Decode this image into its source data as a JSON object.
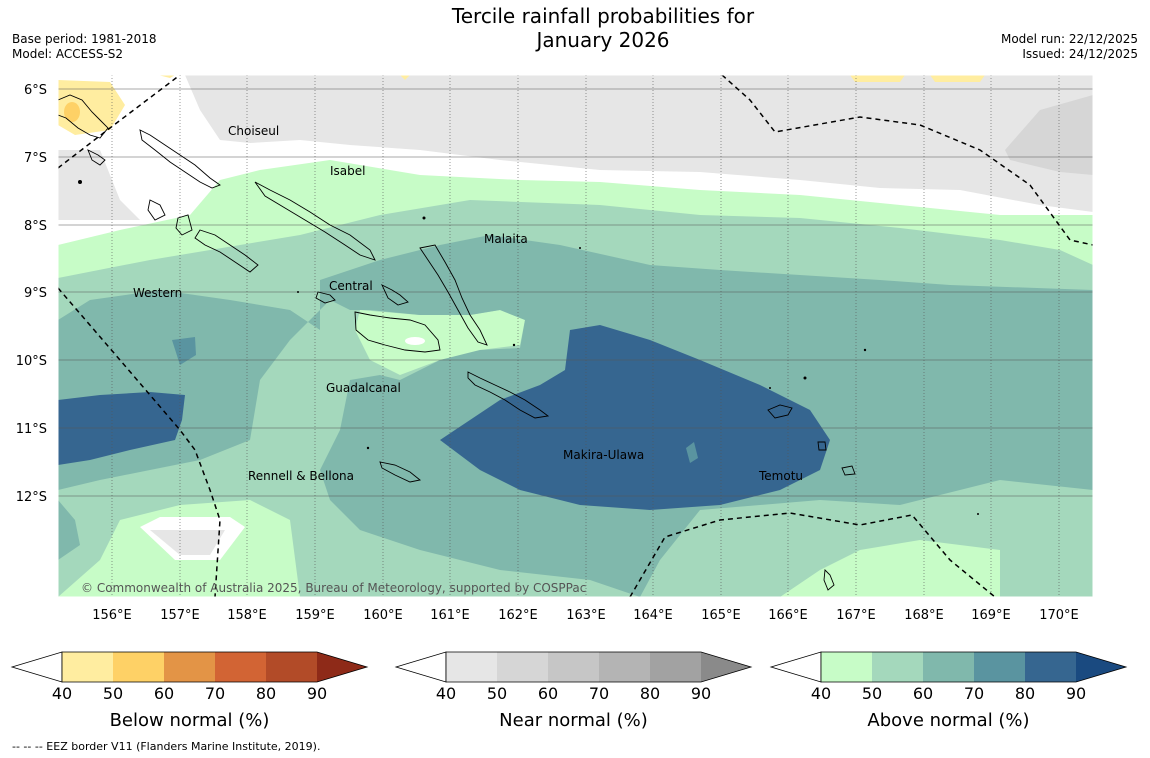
{
  "title": {
    "line1": "Tercile rainfall probabilities for",
    "line2": "January 2026"
  },
  "meta_left": {
    "base_period": "Base period: 1981-2018",
    "model": "Model: ACCESS-S2"
  },
  "meta_right": {
    "model_run": "Model run: 22/12/2025",
    "issued": "Issued: 24/12/2025"
  },
  "map": {
    "lat_labels": [
      "6°S",
      "7°S",
      "8°S",
      "9°S",
      "10°S",
      "11°S",
      "12°S"
    ],
    "lon_labels": [
      "156°E",
      "157°E",
      "158°E",
      "159°E",
      "160°E",
      "161°E",
      "162°E",
      "163°E",
      "164°E",
      "165°E",
      "166°E",
      "167°E",
      "168°E",
      "169°E",
      "170°E"
    ],
    "regions": [
      "Choiseul",
      "Isabel",
      "Malaita",
      "Western",
      "Central",
      "Guadalcanal",
      "Makira-Ulawa",
      "Rennell & Bellona",
      "Temotu"
    ],
    "copyright": "© Commonwealth of Australia 2025, Bureau of Meteorology, supported by COSPPac"
  },
  "colorbars": [
    {
      "label": "Below normal (%)",
      "ticks": [
        "40",
        "50",
        "60",
        "70",
        "80",
        "90"
      ],
      "colors": [
        "#ffeda0",
        "#fed166",
        "#e39446",
        "#d26434",
        "#b24b28",
        "#8e2a18"
      ]
    },
    {
      "label": "Near normal (%)",
      "ticks": [
        "40",
        "50",
        "60",
        "70",
        "80",
        "90"
      ],
      "colors": [
        "#e6e6e6",
        "#d6d6d6",
        "#c6c6c6",
        "#b4b4b4",
        "#a2a2a2",
        "#8a8a8a"
      ]
    },
    {
      "label": "Above normal (%)",
      "ticks": [
        "40",
        "50",
        "60",
        "70",
        "80",
        "90"
      ],
      "colors": [
        "#c7fcc7",
        "#a4d8bc",
        "#80b8ac",
        "#5a94a0",
        "#366690",
        "#1a4a80"
      ]
    }
  ],
  "footer": "--  --  -- EEZ border V11 (Flanders Marine Institute, 2019)."
}
